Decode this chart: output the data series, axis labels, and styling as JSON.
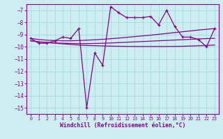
{
  "bg_color": "#cceef0",
  "grid_color": "#a8dce0",
  "line_color": "#880088",
  "xlabel": "Windchill (Refroidissement éolien,°C)",
  "ylim": [
    -15.5,
    -6.5
  ],
  "xlim": [
    -0.5,
    23.5
  ],
  "yticks": [
    -7,
    -8,
    -9,
    -10,
    -11,
    -12,
    -13,
    -14,
    -15
  ],
  "xticks": [
    0,
    1,
    2,
    3,
    4,
    5,
    6,
    7,
    8,
    9,
    10,
    11,
    12,
    13,
    14,
    15,
    16,
    17,
    18,
    19,
    20,
    21,
    22,
    23
  ],
  "main_line": [
    -9.3,
    -9.7,
    -9.7,
    -9.5,
    -9.2,
    -9.3,
    -8.5,
    -15.0,
    -10.5,
    -11.5,
    -6.7,
    -7.2,
    -7.6,
    -7.6,
    -7.6,
    -7.5,
    -8.2,
    -7.0,
    -8.3,
    -9.2,
    -9.2,
    -9.4,
    -10.0,
    -8.5
  ],
  "smooth_up": [
    -9.3,
    -9.4,
    -9.45,
    -9.48,
    -9.5,
    -9.5,
    -9.48,
    -9.45,
    -9.42,
    -9.38,
    -9.33,
    -9.28,
    -9.22,
    -9.16,
    -9.1,
    -9.04,
    -8.97,
    -8.9,
    -8.83,
    -8.76,
    -8.69,
    -8.62,
    -8.56,
    -8.5
  ],
  "smooth_mid": [
    -9.5,
    -9.58,
    -9.63,
    -9.67,
    -9.7,
    -9.72,
    -9.73,
    -9.73,
    -9.72,
    -9.7,
    -9.68,
    -9.65,
    -9.62,
    -9.59,
    -9.56,
    -9.53,
    -9.5,
    -9.47,
    -9.44,
    -9.41,
    -9.38,
    -9.35,
    -9.32,
    -9.3
  ],
  "smooth_down": [
    -9.5,
    -9.6,
    -9.65,
    -9.7,
    -9.75,
    -9.8,
    -9.85,
    -9.88,
    -9.9,
    -9.92,
    -9.94,
    -9.95,
    -9.96,
    -9.97,
    -9.97,
    -9.97,
    -9.97,
    -9.97,
    -9.96,
    -9.95,
    -9.93,
    -9.91,
    -9.88,
    -9.85
  ]
}
